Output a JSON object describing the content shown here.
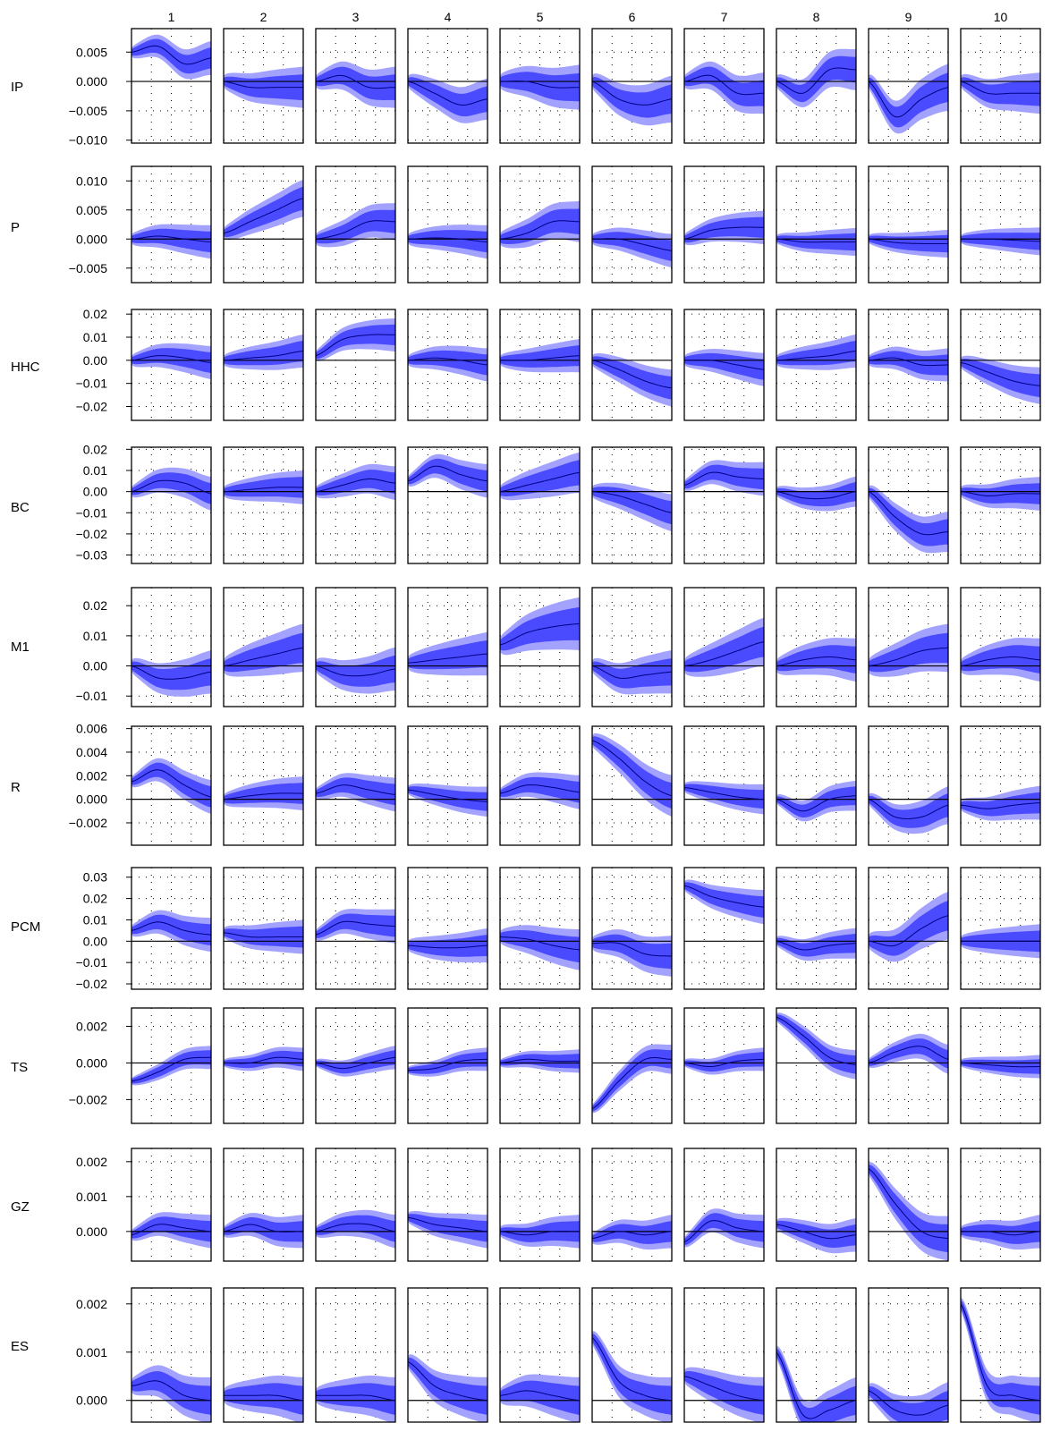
{
  "chart_data": {
    "type": "line",
    "title": "",
    "xlabel": "",
    "ylabel": "",
    "grid": true,
    "horizon_max": 48,
    "columns": [
      "1",
      "2",
      "3",
      "4",
      "5",
      "6",
      "7",
      "8",
      "9",
      "10"
    ],
    "rows": [
      {
        "name": "IP",
        "ylim": [
          -0.0105,
          0.009
        ],
        "ticks": [
          -0.01,
          -0.005,
          0.0,
          0.005
        ],
        "tick_labels": [
          "−0.010",
          "−0.005",
          "0.000",
          "0.005"
        ]
      },
      {
        "name": "P",
        "ylim": [
          -0.0075,
          0.0125
        ],
        "ticks": [
          -0.005,
          0.0,
          0.005,
          0.01
        ],
        "tick_labels": [
          "−0.005",
          "0.000",
          "0.005",
          "0.010"
        ]
      },
      {
        "name": "HHC",
        "ylim": [
          -0.026,
          0.022
        ],
        "ticks": [
          -0.02,
          -0.01,
          0.0,
          0.01,
          0.02
        ],
        "tick_labels": [
          "−0.02",
          "−0.01",
          "0.00",
          "0.01",
          "0.02"
        ]
      },
      {
        "name": "BC",
        "ylim": [
          -0.034,
          0.021
        ],
        "ticks": [
          -0.03,
          -0.02,
          -0.01,
          0.0,
          0.01,
          0.02
        ],
        "tick_labels": [
          "−0.03",
          "−0.02",
          "−0.01",
          "0.00",
          "0.01",
          "0.02"
        ]
      },
      {
        "name": "M1",
        "ylim": [
          -0.0135,
          0.026
        ],
        "ticks": [
          -0.01,
          0.0,
          0.01,
          0.02
        ],
        "tick_labels": [
          "−0.01",
          "0.00",
          "0.01",
          "0.02"
        ]
      },
      {
        "name": "R",
        "ylim": [
          -0.0039,
          0.0062
        ],
        "ticks": [
          -0.002,
          0.0,
          0.002,
          0.004,
          0.006
        ],
        "tick_labels": [
          "−0.002",
          "0.000",
          "0.002",
          "0.004",
          "0.006"
        ]
      },
      {
        "name": "PCM",
        "ylim": [
          -0.0225,
          0.0345
        ],
        "ticks": [
          -0.02,
          -0.01,
          0.0,
          0.01,
          0.02,
          0.03
        ],
        "tick_labels": [
          "−0.02",
          "−0.01",
          "0.00",
          "0.01",
          "0.02",
          "0.03"
        ]
      },
      {
        "name": "TS",
        "ylim": [
          -0.0033,
          0.003
        ],
        "ticks": [
          -0.002,
          0.0,
          0.002
        ],
        "tick_labels": [
          "−0.002",
          "0.000",
          "0.002"
        ]
      },
      {
        "name": "GZ",
        "ylim": [
          -0.00085,
          0.00238
        ],
        "ticks": [
          0.0,
          0.001,
          0.002
        ],
        "tick_labels": [
          "0.000",
          "0.001",
          "0.002"
        ]
      },
      {
        "name": "ES",
        "ylim": [
          -0.00045,
          0.00233
        ],
        "ticks": [
          0.0,
          0.001,
          0.002
        ],
        "tick_labels": [
          "0.000",
          "0.001",
          "0.002"
        ]
      }
    ],
    "responses": [
      [
        {
          "m": [
            0.005,
            0.006,
            0.003,
            0.004
          ],
          "w": 0.0018
        },
        {
          "m": [
            0.0,
            -0.001,
            -0.001,
            -0.001
          ],
          "w": 0.0022
        },
        {
          "m": [
            0.0,
            0.001,
            -0.001,
            -0.001
          ],
          "w": 0.0022
        },
        {
          "m": [
            0.0,
            -0.002,
            -0.004,
            -0.003
          ],
          "w": 0.0022
        },
        {
          "m": [
            0.0,
            0.0,
            -0.001,
            -0.001
          ],
          "w": 0.0024
        },
        {
          "m": [
            0.0,
            -0.003,
            -0.004,
            -0.003
          ],
          "w": 0.0025
        },
        {
          "m": [
            0.0,
            0.001,
            -0.002,
            -0.002
          ],
          "w": 0.0022
        },
        {
          "m": [
            0.0,
            -0.002,
            0.002,
            0.002
          ],
          "w": 0.0022
        },
        {
          "m": [
            0.0,
            -0.006,
            -0.003,
            -0.001
          ],
          "w": 0.0025
        },
        {
          "m": [
            0.0,
            -0.002,
            -0.002,
            -0.002
          ],
          "w": 0.0022
        }
      ],
      [
        {
          "m": [
            0.0,
            0.0005,
            0.0,
            -0.0005
          ],
          "w": 0.0018
        },
        {
          "m": [
            0.001,
            0.003,
            0.005,
            0.007
          ],
          "w": 0.002
        },
        {
          "m": [
            0.0,
            0.001,
            0.003,
            0.003
          ],
          "w": 0.002
        },
        {
          "m": [
            0.0,
            0.0002,
            0.0,
            -0.0005
          ],
          "w": 0.0018
        },
        {
          "m": [
            0.0,
            0.001,
            0.003,
            0.003
          ],
          "w": 0.0022
        },
        {
          "m": [
            0.0,
            0.0,
            -0.001,
            -0.002
          ],
          "w": 0.0018
        },
        {
          "m": [
            0.0,
            0.0015,
            0.002,
            0.002
          ],
          "w": 0.0018
        },
        {
          "m": [
            0.0,
            -0.0005,
            -0.0005,
            -0.0005
          ],
          "w": 0.0015
        },
        {
          "m": [
            0.0,
            -0.0006,
            -0.0008,
            -0.0008
          ],
          "w": 0.0015
        },
        {
          "m": [
            0.0,
            0.0,
            -0.0002,
            -0.0004
          ],
          "w": 0.0015
        }
      ],
      [
        {
          "m": [
            0.0,
            0.002,
            0.001,
            -0.001
          ],
          "w": 0.0045
        },
        {
          "m": [
            0.0,
            0.001,
            0.002,
            0.004
          ],
          "w": 0.0045
        },
        {
          "m": [
            0.002,
            0.009,
            0.011,
            0.011
          ],
          "w": 0.0045
        },
        {
          "m": [
            0.0,
            0.001,
            0.0,
            -0.002
          ],
          "w": 0.0045
        },
        {
          "m": [
            0.0,
            0.0,
            0.001,
            0.002
          ],
          "w": 0.0045
        },
        {
          "m": [
            0.0,
            -0.004,
            -0.009,
            -0.012
          ],
          "w": 0.005
        },
        {
          "m": [
            0.0,
            0.0,
            -0.002,
            -0.004
          ],
          "w": 0.0045
        },
        {
          "m": [
            0.0,
            0.001,
            0.002,
            0.004
          ],
          "w": 0.0045
        },
        {
          "m": [
            0.0,
            0.001,
            -0.002,
            -0.002
          ],
          "w": 0.0045
        },
        {
          "m": [
            -0.001,
            -0.005,
            -0.009,
            -0.011
          ],
          "w": 0.005
        }
      ],
      [
        {
          "m": [
            0.0,
            0.005,
            0.004,
            -0.001
          ],
          "w": 0.005
        },
        {
          "m": [
            0.0,
            0.001,
            0.002,
            0.002
          ],
          "w": 0.005
        },
        {
          "m": [
            0.0,
            0.003,
            0.006,
            0.004
          ],
          "w": 0.005
        },
        {
          "m": [
            0.005,
            0.012,
            0.008,
            0.005
          ],
          "w": 0.005
        },
        {
          "m": [
            0.0,
            0.003,
            0.006,
            0.009
          ],
          "w": 0.006
        },
        {
          "m": [
            0.0,
            -0.002,
            -0.006,
            -0.01
          ],
          "w": 0.0055
        },
        {
          "m": [
            0.003,
            0.009,
            0.007,
            0.006
          ],
          "w": 0.005
        },
        {
          "m": [
            0.0,
            -0.003,
            -0.003,
            0.0
          ],
          "w": 0.0045
        },
        {
          "m": [
            0.0,
            -0.012,
            -0.02,
            -0.019
          ],
          "w": 0.006
        },
        {
          "m": [
            0.0,
            -0.002,
            -0.001,
            -0.001
          ],
          "w": 0.005
        }
      ],
      [
        {
          "m": [
            0.0,
            -0.004,
            -0.004,
            -0.002
          ],
          "w": 0.0045
        },
        {
          "m": [
            0.0,
            0.002,
            0.004,
            0.006
          ],
          "w": 0.005
        },
        {
          "m": [
            0.0,
            -0.003,
            -0.003,
            -0.001
          ],
          "w": 0.0045
        },
        {
          "m": [
            0.001,
            0.002,
            0.003,
            0.004
          ],
          "w": 0.0045
        },
        {
          "m": [
            0.007,
            0.011,
            0.013,
            0.014
          ],
          "w": 0.0055
        },
        {
          "m": [
            0.0,
            -0.004,
            -0.003,
            -0.002
          ],
          "w": 0.0045
        },
        {
          "m": [
            0.0,
            0.002,
            0.005,
            0.008
          ],
          "w": 0.005
        },
        {
          "m": [
            0.0,
            0.002,
            0.003,
            0.002
          ],
          "w": 0.0045
        },
        {
          "m": [
            0.0,
            0.002,
            0.005,
            0.006
          ],
          "w": 0.005
        },
        {
          "m": [
            0.0,
            0.002,
            0.003,
            0.002
          ],
          "w": 0.0045
        }
      ],
      [
        {
          "m": [
            0.0015,
            0.0025,
            0.0012,
            0.0002
          ],
          "w": 0.0009
        },
        {
          "m": [
            0.0,
            0.0003,
            0.0005,
            0.0005
          ],
          "w": 0.0009
        },
        {
          "m": [
            0.0005,
            0.0012,
            0.0008,
            0.0004
          ],
          "w": 0.0009
        },
        {
          "m": [
            0.0008,
            0.0004,
            0.0,
            -0.0002
          ],
          "w": 0.0008
        },
        {
          "m": [
            0.0005,
            0.0012,
            0.001,
            0.0006
          ],
          "w": 0.0009
        },
        {
          "m": [
            0.005,
            0.0035,
            0.0015,
            0.0003
          ],
          "w": 0.0011
        },
        {
          "m": [
            0.001,
            0.0006,
            0.0002,
            0.0
          ],
          "w": 0.0008
        },
        {
          "m": [
            0.0,
            -0.001,
            0.0,
            0.0003
          ],
          "w": 0.0008
        },
        {
          "m": [
            0.0,
            -0.0015,
            -0.0015,
            -0.0005
          ],
          "w": 0.001
        },
        {
          "m": [
            -0.0005,
            -0.0008,
            -0.0005,
            -0.0003
          ],
          "w": 0.0009
        }
      ],
      [
        {
          "m": [
            0.005,
            0.009,
            0.005,
            0.003
          ],
          "w": 0.005
        },
        {
          "m": [
            0.004,
            0.002,
            0.002,
            0.002
          ],
          "w": 0.005
        },
        {
          "m": [
            0.003,
            0.009,
            0.008,
            0.007
          ],
          "w": 0.005
        },
        {
          "m": [
            -0.002,
            -0.003,
            -0.003,
            -0.002
          ],
          "w": 0.005
        },
        {
          "m": [
            0.002,
            0.001,
            -0.002,
            -0.004
          ],
          "w": 0.006
        },
        {
          "m": [
            -0.001,
            -0.001,
            -0.006,
            -0.007
          ],
          "w": 0.006
        },
        {
          "m": [
            0.026,
            0.021,
            0.018,
            0.016
          ],
          "w": 0.005
        },
        {
          "m": [
            0.0,
            -0.004,
            -0.002,
            -0.001
          ],
          "w": 0.0045
        },
        {
          "m": [
            0.0,
            -0.002,
            0.006,
            0.012
          ],
          "w": 0.007
        },
        {
          "m": [
            0.0,
            0.0,
            0.0,
            0.0
          ],
          "w": 0.005
        }
      ],
      [
        {
          "m": [
            -0.001,
            -0.0005,
            0.0002,
            0.0003
          ],
          "w": 0.0004
        },
        {
          "m": [
            0.0,
            0.0,
            0.0003,
            0.0002
          ],
          "w": 0.0004
        },
        {
          "m": [
            0.0,
            -0.0003,
            0.0,
            0.0003
          ],
          "w": 0.0004
        },
        {
          "m": [
            -0.0004,
            -0.0003,
            0.0001,
            0.0002
          ],
          "w": 0.0004
        },
        {
          "m": [
            0.0,
            0.0002,
            0.0001,
            0.0001
          ],
          "w": 0.0004
        },
        {
          "m": [
            -0.0025,
            -0.001,
            0.0002,
            0.0002
          ],
          "w": 0.0005
        },
        {
          "m": [
            0.0,
            -0.0002,
            0.0001,
            0.0002
          ],
          "w": 0.0004
        },
        {
          "m": [
            0.0025,
            0.0015,
            0.0003,
            -0.0001
          ],
          "w": 0.0005
        },
        {
          "m": [
            0.0,
            0.0006,
            0.0009,
            0.0002
          ],
          "w": 0.0005
        },
        {
          "m": [
            0.0,
            -0.0001,
            -0.0002,
            -0.0002
          ],
          "w": 0.0004
        }
      ],
      [
        {
          "m": [
            -0.0001,
            0.0002,
            0.0001,
            0.0
          ],
          "w": 0.0003
        },
        {
          "m": [
            0.0,
            0.0002,
            0.0,
            0.0
          ],
          "w": 0.0003
        },
        {
          "m": [
            0.0,
            0.0002,
            0.0002,
            0.0
          ],
          "w": 0.0003
        },
        {
          "m": [
            0.0004,
            0.0002,
            0.0001,
            0.0
          ],
          "w": 0.0003
        },
        {
          "m": [
            0.0,
            -0.0001,
            0.0,
            0.0
          ],
          "w": 0.0003
        },
        {
          "m": [
            -0.0002,
            0.0,
            -0.0001,
            0.0
          ],
          "w": 0.0003
        },
        {
          "m": [
            -0.0003,
            0.0003,
            0.0001,
            0.0
          ],
          "w": 0.0003
        },
        {
          "m": [
            0.0002,
            0.0,
            -0.0002,
            -0.0001
          ],
          "w": 0.0003
        },
        {
          "m": [
            0.0018,
            0.0008,
            0.0,
            -0.0002
          ],
          "w": 0.0004
        },
        {
          "m": [
            0.0,
            0.0,
            -0.0001,
            0.0
          ],
          "w": 0.0003
        }
      ],
      [
        {
          "m": [
            0.0003,
            0.0004,
            0.0001,
            0.0
          ],
          "w": 0.0003
        },
        {
          "m": [
            0.0001,
            0.0001,
            0.0001,
            0.0
          ],
          "w": 0.0003
        },
        {
          "m": [
            0.0001,
            0.0001,
            0.0001,
            0.0
          ],
          "w": 0.0003
        },
        {
          "m": [
            0.0008,
            0.0003,
            0.0001,
            0.0
          ],
          "w": 0.0003
        },
        {
          "m": [
            0.0001,
            0.0002,
            0.0001,
            0.0
          ],
          "w": 0.0003
        },
        {
          "m": [
            0.0013,
            0.0004,
            0.0001,
            0.0
          ],
          "w": 0.0003
        },
        {
          "m": [
            0.0005,
            0.0003,
            0.0001,
            0.0
          ],
          "w": 0.0003
        },
        {
          "m": [
            0.001,
            -0.0003,
            -0.0002,
            0.0
          ],
          "w": 0.0003
        },
        {
          "m": [
            0.0002,
            -0.0002,
            -0.0003,
            -0.0001
          ],
          "w": 0.0003
        },
        {
          "m": [
            0.002,
            0.0003,
            0.0001,
            0.0
          ],
          "w": 0.0003
        }
      ]
    ]
  }
}
